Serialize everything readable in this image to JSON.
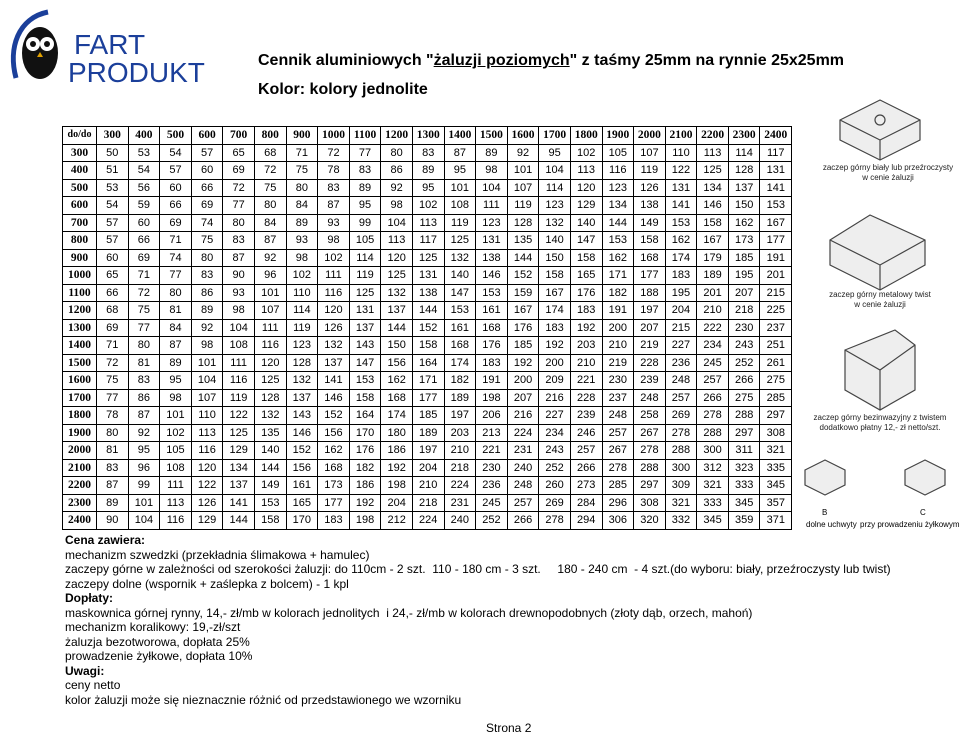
{
  "header": {
    "logo": [
      "FART",
      "PRODUKT"
    ],
    "title": {
      "prefix": "Cennik aluminiowych \"",
      "emphasis": "żaluzji poziomych",
      "suffix": "\" z taśmy 25mm na rynnie 25x25mm"
    },
    "subtitle": "Kolor: kolory jednolite"
  },
  "table": {
    "corner": "do/do",
    "columns": [
      "300",
      "400",
      "500",
      "600",
      "700",
      "800",
      "900",
      "1000",
      "1100",
      "1200",
      "1300",
      "1400",
      "1500",
      "1600",
      "1700",
      "1800",
      "1900",
      "2000",
      "2100",
      "2200",
      "2300",
      "2400"
    ],
    "rows": [
      {
        "label": "300",
        "values": [
          "50",
          "53",
          "54",
          "57",
          "65",
          "68",
          "71",
          "72",
          "77",
          "80",
          "83",
          "87",
          "89",
          "92",
          "95",
          "102",
          "105",
          "107",
          "110",
          "113",
          "114",
          "117"
        ]
      },
      {
        "label": "400",
        "values": [
          "51",
          "54",
          "57",
          "60",
          "69",
          "72",
          "75",
          "78",
          "83",
          "86",
          "89",
          "95",
          "98",
          "101",
          "104",
          "113",
          "116",
          "119",
          "122",
          "125",
          "128",
          "131"
        ]
      },
      {
        "label": "500",
        "values": [
          "53",
          "56",
          "60",
          "66",
          "72",
          "75",
          "80",
          "83",
          "89",
          "92",
          "95",
          "101",
          "104",
          "107",
          "114",
          "120",
          "123",
          "126",
          "131",
          "134",
          "137",
          "141"
        ]
      },
      {
        "label": "600",
        "values": [
          "54",
          "59",
          "66",
          "69",
          "77",
          "80",
          "84",
          "87",
          "95",
          "98",
          "102",
          "108",
          "111",
          "119",
          "123",
          "129",
          "134",
          "138",
          "141",
          "146",
          "150",
          "153"
        ]
      },
      {
        "label": "700",
        "values": [
          "57",
          "60",
          "69",
          "74",
          "80",
          "84",
          "89",
          "93",
          "99",
          "104",
          "113",
          "119",
          "123",
          "128",
          "132",
          "140",
          "144",
          "149",
          "153",
          "158",
          "162",
          "167"
        ]
      },
      {
        "label": "800",
        "values": [
          "57",
          "66",
          "71",
          "75",
          "83",
          "87",
          "93",
          "98",
          "105",
          "113",
          "117",
          "125",
          "131",
          "135",
          "140",
          "147",
          "153",
          "158",
          "162",
          "167",
          "173",
          "177"
        ]
      },
      {
        "label": "900",
        "values": [
          "60",
          "69",
          "74",
          "80",
          "87",
          "92",
          "98",
          "102",
          "114",
          "120",
          "125",
          "132",
          "138",
          "144",
          "150",
          "158",
          "162",
          "168",
          "174",
          "179",
          "185",
          "191"
        ]
      },
      {
        "label": "1000",
        "values": [
          "65",
          "71",
          "77",
          "83",
          "90",
          "96",
          "102",
          "111",
          "119",
          "125",
          "131",
          "140",
          "146",
          "152",
          "158",
          "165",
          "171",
          "177",
          "183",
          "189",
          "195",
          "201"
        ]
      },
      {
        "label": "1100",
        "values": [
          "66",
          "72",
          "80",
          "86",
          "93",
          "101",
          "110",
          "116",
          "125",
          "132",
          "138",
          "147",
          "153",
          "159",
          "167",
          "176",
          "182",
          "188",
          "195",
          "201",
          "207",
          "215"
        ]
      },
      {
        "label": "1200",
        "values": [
          "68",
          "75",
          "81",
          "89",
          "98",
          "107",
          "114",
          "120",
          "131",
          "137",
          "144",
          "153",
          "161",
          "167",
          "174",
          "183",
          "191",
          "197",
          "204",
          "210",
          "218",
          "225"
        ]
      },
      {
        "label": "1300",
        "values": [
          "69",
          "77",
          "84",
          "92",
          "104",
          "111",
          "119",
          "126",
          "137",
          "144",
          "152",
          "161",
          "168",
          "176",
          "183",
          "192",
          "200",
          "207",
          "215",
          "222",
          "230",
          "237"
        ]
      },
      {
        "label": "1400",
        "values": [
          "71",
          "80",
          "87",
          "98",
          "108",
          "116",
          "123",
          "132",
          "143",
          "150",
          "158",
          "168",
          "176",
          "185",
          "192",
          "203",
          "210",
          "219",
          "227",
          "234",
          "243",
          "251"
        ]
      },
      {
        "label": "1500",
        "values": [
          "72",
          "81",
          "89",
          "101",
          "111",
          "120",
          "128",
          "137",
          "147",
          "156",
          "164",
          "174",
          "183",
          "192",
          "200",
          "210",
          "219",
          "228",
          "236",
          "245",
          "252",
          "261"
        ]
      },
      {
        "label": "1600",
        "values": [
          "75",
          "83",
          "95",
          "104",
          "116",
          "125",
          "132",
          "141",
          "153",
          "162",
          "171",
          "182",
          "191",
          "200",
          "209",
          "221",
          "230",
          "239",
          "248",
          "257",
          "266",
          "275"
        ]
      },
      {
        "label": "1700",
        "values": [
          "77",
          "86",
          "98",
          "107",
          "119",
          "128",
          "137",
          "146",
          "158",
          "168",
          "177",
          "189",
          "198",
          "207",
          "216",
          "228",
          "237",
          "248",
          "257",
          "266",
          "275",
          "285"
        ]
      },
      {
        "label": "1800",
        "values": [
          "78",
          "87",
          "101",
          "110",
          "122",
          "132",
          "143",
          "152",
          "164",
          "174",
          "185",
          "197",
          "206",
          "216",
          "227",
          "239",
          "248",
          "258",
          "269",
          "278",
          "288",
          "297"
        ]
      },
      {
        "label": "1900",
        "values": [
          "80",
          "92",
          "102",
          "113",
          "125",
          "135",
          "146",
          "156",
          "170",
          "180",
          "189",
          "203",
          "213",
          "224",
          "234",
          "246",
          "257",
          "267",
          "278",
          "288",
          "297",
          "308"
        ]
      },
      {
        "label": "2000",
        "values": [
          "81",
          "95",
          "105",
          "116",
          "129",
          "140",
          "152",
          "162",
          "176",
          "186",
          "197",
          "210",
          "221",
          "231",
          "243",
          "257",
          "267",
          "278",
          "288",
          "300",
          "311",
          "321"
        ]
      },
      {
        "label": "2100",
        "values": [
          "83",
          "96",
          "108",
          "120",
          "134",
          "144",
          "156",
          "168",
          "182",
          "192",
          "204",
          "218",
          "230",
          "240",
          "252",
          "266",
          "278",
          "288",
          "300",
          "312",
          "323",
          "335"
        ]
      },
      {
        "label": "2200",
        "values": [
          "87",
          "99",
          "111",
          "122",
          "137",
          "149",
          "161",
          "173",
          "186",
          "198",
          "210",
          "224",
          "236",
          "248",
          "260",
          "273",
          "285",
          "297",
          "309",
          "321",
          "333",
          "345"
        ]
      },
      {
        "label": "2300",
        "values": [
          "89",
          "101",
          "113",
          "126",
          "141",
          "153",
          "165",
          "177",
          "192",
          "204",
          "218",
          "231",
          "245",
          "257",
          "269",
          "284",
          "296",
          "308",
          "321",
          "333",
          "345",
          "357"
        ]
      },
      {
        "label": "2400",
        "values": [
          "90",
          "104",
          "116",
          "129",
          "144",
          "158",
          "170",
          "183",
          "198",
          "212",
          "224",
          "240",
          "252",
          "266",
          "278",
          "294",
          "306",
          "320",
          "332",
          "345",
          "359",
          "371"
        ]
      }
    ]
  },
  "notes": [
    {
      "kind": "heading",
      "text": "Cena zawiera:"
    },
    {
      "kind": "text",
      "text": "mechanizm szwedzki (przekładnia ślimakowa + hamulec)"
    },
    {
      "kind": "text",
      "text": "zaczepy górne w zależności od szerokości żaluzji: do 110cm - 2 szt.  110 - 180 cm - 3 szt.     180 - 240 cm  - 4 szt.(do wyboru: biały, przeźroczysty lub twist)"
    },
    {
      "kind": "text",
      "text": "zaczepy dolne (wspornik + zaślepka z bolcem) - 1 kpl"
    },
    {
      "kind": "heading",
      "text": "Dopłaty:"
    },
    {
      "kind": "text",
      "text": "maskownica górnej rynny, 14,- zł/mb w kolorach jednolitych  i 24,- zł/mb w kolorach drewnopodobnych (złoty dąb, orzech, mahoń)"
    },
    {
      "kind": "text",
      "text": "mechanizm koralikowy: 19,-zł/szt"
    },
    {
      "kind": "text",
      "text": "żaluzja bezotworowa, dopłata 25%"
    },
    {
      "kind": "text",
      "text": "prowadzenie żyłkowe, dopłata 10%"
    },
    {
      "kind": "heading",
      "text": "Uwagi:"
    },
    {
      "kind": "text",
      "text": "ceny netto"
    },
    {
      "kind": "text",
      "text": "kolor żaluzji może się nieznacznie różnić od przedstawionego we wzorniku"
    }
  ],
  "captions": {
    "clip_white": [
      "zaczep górny biały lub przeźroczysty",
      "w cenie żaluzji"
    ],
    "clip_metal": [
      "zaczep górny metalowy twist",
      "w cenie żaluzji"
    ],
    "clip_frameless": [
      "zaczep górny bezinwazyjny z twistem",
      "dodatkowo płatny 12,- zł netto/szt."
    ],
    "label_b": "B",
    "label_c": "C",
    "bottom_left": "dolne uchwyty",
    "bottom_right": "przy prowadzeniu żyłkowym"
  },
  "footer": {
    "page": "Strona 2"
  }
}
